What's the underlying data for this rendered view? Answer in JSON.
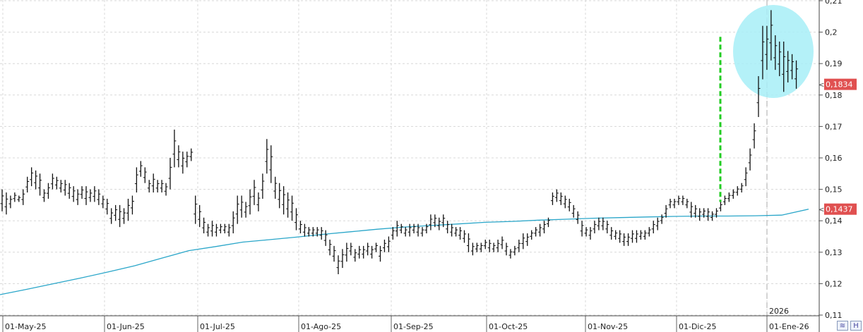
{
  "chart_data": {
    "type": "bar",
    "subtype": "ohlc",
    "title": "",
    "xlabel": "",
    "ylabel": "",
    "ylim": [
      0.11,
      0.21
    ],
    "y_ticks": [
      "0,11",
      "0,12",
      "0,13",
      "0,14",
      "0,15",
      "0,16",
      "0,17",
      "0,18",
      "0,19",
      "0,2",
      "0,21"
    ],
    "x_ticks": [
      "01-May-25",
      "01-Jun-25",
      "01-Jul-25",
      "01-Ago-25",
      "01-Sep-25",
      "01-Oct-25",
      "01-Nov-25",
      "01-Dic-25",
      "01-Ene-26"
    ],
    "year_marker": "2026",
    "grid": true,
    "price_tags": [
      {
        "value": "0,1834",
        "y": 0.1834,
        "color": "#e05050"
      },
      {
        "value": "0,1437",
        "y": 0.1437,
        "color": "#e05050"
      }
    ],
    "bars": [
      [
        0.143,
        0.15
      ],
      [
        0.142,
        0.149
      ],
      [
        0.144,
        0.148
      ],
      [
        0.146,
        0.149
      ],
      [
        0.146,
        0.148
      ],
      [
        0.145,
        0.15
      ],
      [
        0.149,
        0.154
      ],
      [
        0.151,
        0.157
      ],
      [
        0.15,
        0.156
      ],
      [
        0.148,
        0.155
      ],
      [
        0.146,
        0.15
      ],
      [
        0.147,
        0.152
      ],
      [
        0.15,
        0.155
      ],
      [
        0.15,
        0.154
      ],
      [
        0.149,
        0.153
      ],
      [
        0.148,
        0.153
      ],
      [
        0.147,
        0.152
      ],
      [
        0.146,
        0.151
      ],
      [
        0.145,
        0.15
      ],
      [
        0.147,
        0.151
      ],
      [
        0.145,
        0.151
      ],
      [
        0.146,
        0.15
      ],
      [
        0.146,
        0.151
      ],
      [
        0.145,
        0.15
      ],
      [
        0.144,
        0.148
      ],
      [
        0.142,
        0.147
      ],
      [
        0.139,
        0.144
      ],
      [
        0.14,
        0.145
      ],
      [
        0.138,
        0.145
      ],
      [
        0.139,
        0.144
      ],
      [
        0.14,
        0.147
      ],
      [
        0.142,
        0.148
      ],
      [
        0.149,
        0.157
      ],
      [
        0.154,
        0.159
      ],
      [
        0.152,
        0.157
      ],
      [
        0.149,
        0.153
      ],
      [
        0.149,
        0.155
      ],
      [
        0.149,
        0.153
      ],
      [
        0.149,
        0.153
      ],
      [
        0.148,
        0.152
      ],
      [
        0.15,
        0.16
      ],
      [
        0.157,
        0.169
      ],
      [
        0.157,
        0.164
      ],
      [
        0.155,
        0.162
      ],
      [
        0.157,
        0.162
      ],
      [
        0.159,
        0.163
      ],
      [
        0.139,
        0.148
      ],
      [
        0.138,
        0.145
      ],
      [
        0.136,
        0.141
      ],
      [
        0.135,
        0.139
      ],
      [
        0.135,
        0.14
      ],
      [
        0.135,
        0.139
      ],
      [
        0.136,
        0.139
      ],
      [
        0.136,
        0.139
      ],
      [
        0.135,
        0.139
      ],
      [
        0.136,
        0.143
      ],
      [
        0.139,
        0.148
      ],
      [
        0.141,
        0.148
      ],
      [
        0.141,
        0.146
      ],
      [
        0.142,
        0.15
      ],
      [
        0.145,
        0.153
      ],
      [
        0.143,
        0.149
      ],
      [
        0.147,
        0.155
      ],
      [
        0.155,
        0.166
      ],
      [
        0.152,
        0.164
      ],
      [
        0.147,
        0.154
      ],
      [
        0.144,
        0.152
      ],
      [
        0.142,
        0.151
      ],
      [
        0.141,
        0.149
      ],
      [
        0.14,
        0.148
      ],
      [
        0.137,
        0.144
      ],
      [
        0.136,
        0.14
      ],
      [
        0.135,
        0.139
      ],
      [
        0.135,
        0.138
      ],
      [
        0.135,
        0.138
      ],
      [
        0.135,
        0.138
      ],
      [
        0.134,
        0.138
      ],
      [
        0.132,
        0.137
      ],
      [
        0.129,
        0.134
      ],
      [
        0.127,
        0.132
      ],
      [
        0.123,
        0.129
      ],
      [
        0.125,
        0.131
      ],
      [
        0.127,
        0.133
      ],
      [
        0.129,
        0.133
      ],
      [
        0.127,
        0.131
      ],
      [
        0.128,
        0.132
      ],
      [
        0.128,
        0.132
      ],
      [
        0.129,
        0.133
      ],
      [
        0.128,
        0.132
      ],
      [
        0.13,
        0.133
      ],
      [
        0.127,
        0.132
      ],
      [
        0.13,
        0.134
      ],
      [
        0.13,
        0.135
      ],
      [
        0.134,
        0.138
      ],
      [
        0.135,
        0.14
      ],
      [
        0.136,
        0.139
      ],
      [
        0.135,
        0.138
      ],
      [
        0.135,
        0.139
      ],
      [
        0.136,
        0.139
      ],
      [
        0.135,
        0.139
      ],
      [
        0.135,
        0.138
      ],
      [
        0.136,
        0.139
      ],
      [
        0.137,
        0.142
      ],
      [
        0.138,
        0.142
      ],
      [
        0.137,
        0.141
      ],
      [
        0.138,
        0.142
      ],
      [
        0.136,
        0.14
      ],
      [
        0.135,
        0.139
      ],
      [
        0.135,
        0.138
      ],
      [
        0.134,
        0.138
      ],
      [
        0.133,
        0.137
      ],
      [
        0.13,
        0.136
      ],
      [
        0.129,
        0.133
      ],
      [
        0.13,
        0.133
      ],
      [
        0.13,
        0.133
      ],
      [
        0.131,
        0.134
      ],
      [
        0.13,
        0.134
      ],
      [
        0.13,
        0.133
      ],
      [
        0.13,
        0.134
      ],
      [
        0.131,
        0.135
      ],
      [
        0.129,
        0.133
      ],
      [
        0.128,
        0.131
      ],
      [
        0.129,
        0.132
      ],
      [
        0.13,
        0.134
      ],
      [
        0.131,
        0.136
      ],
      [
        0.132,
        0.136
      ],
      [
        0.134,
        0.137
      ],
      [
        0.135,
        0.138
      ],
      [
        0.135,
        0.139
      ],
      [
        0.136,
        0.14
      ],
      [
        0.138,
        0.141
      ],
      [
        0.145,
        0.149
      ],
      [
        0.146,
        0.15
      ],
      [
        0.145,
        0.149
      ],
      [
        0.144,
        0.148
      ],
      [
        0.143,
        0.147
      ],
      [
        0.141,
        0.145
      ],
      [
        0.139,
        0.143
      ],
      [
        0.135,
        0.14
      ],
      [
        0.135,
        0.138
      ],
      [
        0.134,
        0.138
      ],
      [
        0.136,
        0.14
      ],
      [
        0.137,
        0.141
      ],
      [
        0.137,
        0.141
      ],
      [
        0.136,
        0.14
      ],
      [
        0.134,
        0.138
      ],
      [
        0.134,
        0.137
      ],
      [
        0.133,
        0.137
      ],
      [
        0.132,
        0.136
      ],
      [
        0.132,
        0.136
      ],
      [
        0.133,
        0.137
      ],
      [
        0.133,
        0.137
      ],
      [
        0.134,
        0.137
      ],
      [
        0.134,
        0.137
      ],
      [
        0.135,
        0.138
      ],
      [
        0.136,
        0.14
      ],
      [
        0.137,
        0.141
      ],
      [
        0.139,
        0.142
      ],
      [
        0.141,
        0.145
      ],
      [
        0.144,
        0.147
      ],
      [
        0.144,
        0.147
      ],
      [
        0.145,
        0.148
      ],
      [
        0.145,
        0.148
      ],
      [
        0.144,
        0.147
      ],
      [
        0.141,
        0.146
      ],
      [
        0.141,
        0.145
      ],
      [
        0.14,
        0.144
      ],
      [
        0.141,
        0.144
      ],
      [
        0.14,
        0.144
      ],
      [
        0.14,
        0.143
      ],
      [
        0.141,
        0.144
      ],
      [
        0.143,
        0.146
      ],
      [
        0.145,
        0.148
      ],
      [
        0.146,
        0.149
      ],
      [
        0.147,
        0.15
      ],
      [
        0.148,
        0.151
      ],
      [
        0.149,
        0.152
      ],
      [
        0.151,
        0.157
      ],
      [
        0.156,
        0.163
      ],
      [
        0.163,
        0.171
      ],
      [
        0.173,
        0.186
      ],
      [
        0.185,
        0.202
      ],
      [
        0.188,
        0.202
      ],
      [
        0.191,
        0.207
      ],
      [
        0.188,
        0.199
      ],
      [
        0.186,
        0.197
      ],
      [
        0.181,
        0.197
      ],
      [
        0.184,
        0.194
      ],
      [
        0.185,
        0.193
      ],
      [
        0.182,
        0.191
      ]
    ],
    "series": [
      {
        "values": [
          0.1165,
          0.1182,
          0.12,
          0.1218,
          0.1237,
          0.1257,
          0.1281,
          0.1305,
          0.1318,
          0.1332,
          0.134,
          0.1348,
          0.1357,
          0.1365,
          0.1373,
          0.138,
          0.1385,
          0.139,
          0.1395,
          0.1398,
          0.1402,
          0.1405,
          0.1408,
          0.141,
          0.1412,
          0.1414,
          0.1415,
          0.1415,
          0.1416,
          0.1418,
          0.1437
        ]
      }
    ],
    "colors": {
      "bars": "#111111",
      "moving_average": "#2aa6c9",
      "signal_line": "#22cc22",
      "highlight": "#a7eef7",
      "grid": "#d8d8d8"
    }
  },
  "toolbar": {
    "zoom_icon": "zoom-mountain-icon",
    "save_icon": "floppy-disk-icon"
  }
}
